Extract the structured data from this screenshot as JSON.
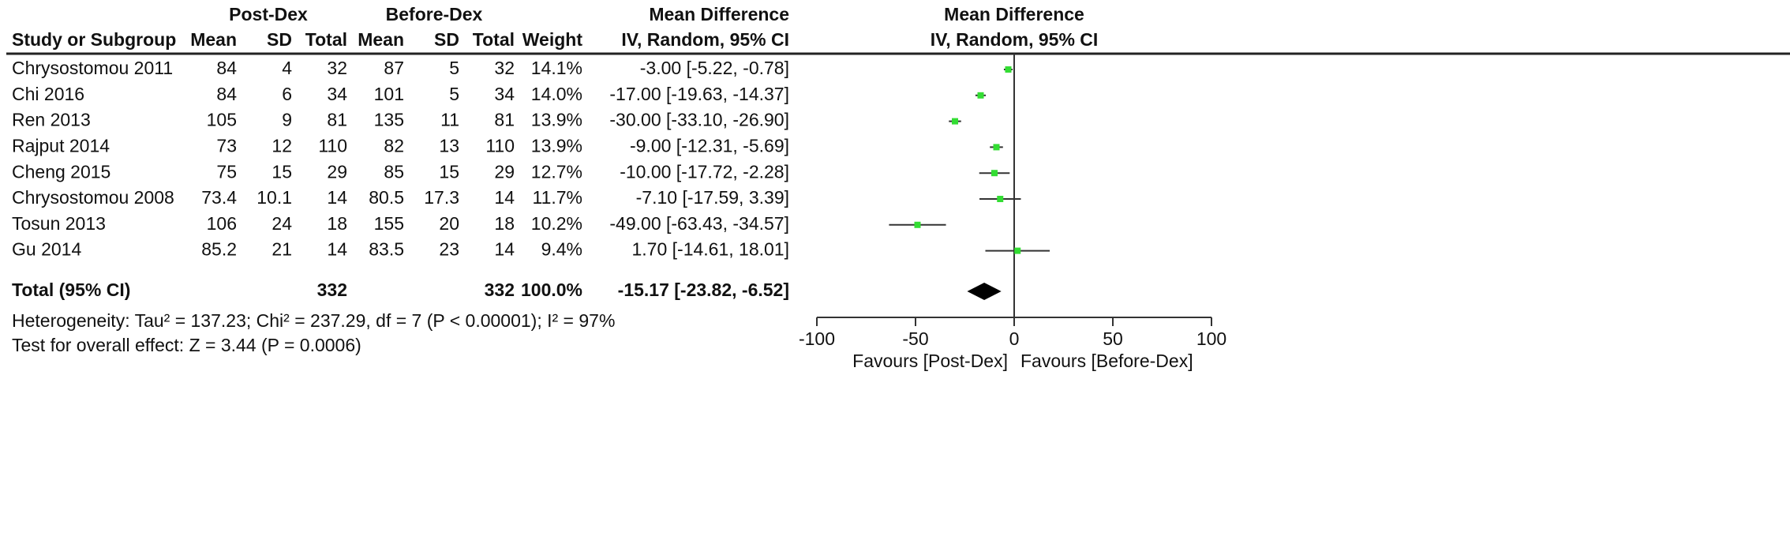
{
  "chart_data": {
    "type": "forest",
    "group_headers": [
      "Post-Dex",
      "Before-Dex"
    ],
    "effect_header": [
      "Mean Difference",
      "IV, Random, 95% CI"
    ],
    "columns": [
      "Study or Subgroup",
      "Mean",
      "SD",
      "Total",
      "Mean",
      "SD",
      "Total",
      "Weight"
    ],
    "categories": [
      "Chrysostomou 2011",
      "Chi 2016",
      "Ren 2013",
      "Rajput 2014",
      "Cheng 2015",
      "Chrysostomou 2008",
      "Tosun 2013",
      "Gu 2014"
    ],
    "rows": [
      [
        "84",
        "4",
        "32",
        "87",
        "5",
        "32",
        "14.1%"
      ],
      [
        "84",
        "6",
        "34",
        "101",
        "5",
        "34",
        "14.0%"
      ],
      [
        "105",
        "9",
        "81",
        "135",
        "11",
        "81",
        "13.9%"
      ],
      [
        "73",
        "12",
        "110",
        "82",
        "13",
        "110",
        "13.9%"
      ],
      [
        "75",
        "15",
        "29",
        "85",
        "15",
        "29",
        "12.7%"
      ],
      [
        "73.4",
        "10.1",
        "14",
        "80.5",
        "17.3",
        "14",
        "11.7%"
      ],
      [
        "106",
        "24",
        "18",
        "155",
        "20",
        "18",
        "10.2%"
      ],
      [
        "85.2",
        "21",
        "14",
        "83.5",
        "23",
        "14",
        "9.4%"
      ]
    ],
    "values": [
      -3.0,
      -17.0,
      -30.0,
      -9.0,
      -10.0,
      -7.1,
      -49.0,
      1.7
    ],
    "ci_low": [
      -5.22,
      -19.63,
      -33.1,
      -12.31,
      -17.72,
      -17.59,
      -63.43,
      -14.61
    ],
    "ci_high": [
      -0.78,
      -14.37,
      -26.9,
      -5.69,
      -2.28,
      3.39,
      -34.57,
      18.01
    ],
    "value_labels": [
      "-3.00 [-5.22, -0.78]",
      "-17.00 [-19.63, -14.37]",
      "-30.00 [-33.10, -26.90]",
      "-9.00 [-12.31, -5.69]",
      "-10.00 [-17.72, -2.28]",
      "-7.10 [-17.59, 3.39]",
      "-49.00 [-63.43, -34.57]",
      "1.70 [-14.61, 18.01]"
    ],
    "total": {
      "label": "Total (95% CI)",
      "post_total": "332",
      "before_total": "332",
      "weight": "100.0%",
      "value": -15.17,
      "ci_low": -23.82,
      "ci_high": -6.52,
      "value_label": "-15.17 [-23.82, -6.52]"
    },
    "heterogeneity": "Heterogeneity: Tau² = 137.23; Chi² = 237.29, df = 7 (P < 0.00001); I² = 97%",
    "overall_effect": "Test for overall effect: Z = 3.44 (P = 0.0006)",
    "xlim": [
      -100,
      100
    ],
    "xticks": [
      -100,
      -50,
      0,
      50,
      100
    ],
    "x_labels": [
      "Favours [Post-Dex]",
      "Favours [Before-Dex]"
    ],
    "point_color": "#33dd33",
    "line_color": "#333333"
  }
}
